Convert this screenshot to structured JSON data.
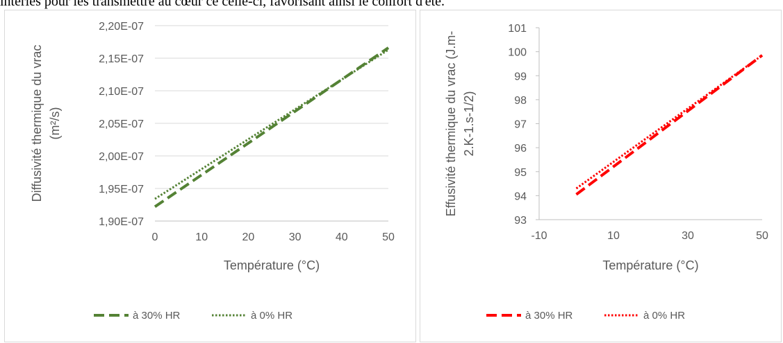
{
  "page_caption": "intériés pour les transmettre au cœur ce celle-ci, favorisant ainsi le confort d'été.",
  "chart_data": [
    {
      "type": "line",
      "title": "",
      "xlabel": "Température (°C)",
      "ylabel_lines": [
        "Diffusivité thermique du vrac",
        "(m²/s)"
      ],
      "xlim": [
        0,
        50
      ],
      "ylim": [
        1.9e-07,
        2.2e-07
      ],
      "x_ticks": [
        0,
        10,
        20,
        30,
        40,
        50
      ],
      "x_tick_labels": [
        "0",
        "10",
        "20",
        "30",
        "40",
        "50"
      ],
      "y_ticks": [
        1.9e-07,
        1.95e-07,
        2e-07,
        2.05e-07,
        2.1e-07,
        2.15e-07,
        2.2e-07
      ],
      "y_tick_labels": [
        "1,90E-07",
        "1,95E-07",
        "2,00E-07",
        "2,05E-07",
        "2,10E-07",
        "2,15E-07",
        "2,20E-07"
      ],
      "grid": "horizontal",
      "legend_position": "bottom",
      "colors": {
        "series": "#548235",
        "grid": "#d9d9d9",
        "text": "#595959"
      },
      "series": [
        {
          "name": "à 30% HR",
          "style": "dashed",
          "x": [
            0,
            50
          ],
          "y": [
            1.922e-07,
            2.166e-07
          ]
        },
        {
          "name": "à 0% HR",
          "style": "dotted",
          "x": [
            0,
            50
          ],
          "y": [
            1.934e-07,
            2.163e-07
          ]
        }
      ]
    },
    {
      "type": "line",
      "title": "",
      "xlabel": "Température (°C)",
      "ylabel_lines": [
        "Effusivité  thermique du vrac (J.m-",
        "2.K-1.s-1/2)"
      ],
      "xlim": [
        -10,
        50
      ],
      "ylim": [
        93,
        101
      ],
      "x_ticks": [
        -10,
        10,
        30,
        50
      ],
      "x_tick_labels": [
        "-10",
        "10",
        "30",
        "50"
      ],
      "y_ticks": [
        93,
        94,
        95,
        96,
        97,
        98,
        99,
        100,
        101
      ],
      "y_tick_labels": [
        "93",
        "94",
        "95",
        "96",
        "97",
        "98",
        "99",
        "100",
        "101"
      ],
      "grid": "none",
      "legend_position": "bottom",
      "colors": {
        "series": "#ff0000",
        "grid": "#d9d9d9",
        "text": "#595959"
      },
      "series": [
        {
          "name": "à 30% HR",
          "style": "dashed",
          "x": [
            0,
            50
          ],
          "y": [
            94.05,
            99.85
          ]
        },
        {
          "name": "à 0% HR",
          "style": "dotted",
          "x": [
            0,
            50
          ],
          "y": [
            94.3,
            99.85
          ]
        }
      ]
    }
  ]
}
